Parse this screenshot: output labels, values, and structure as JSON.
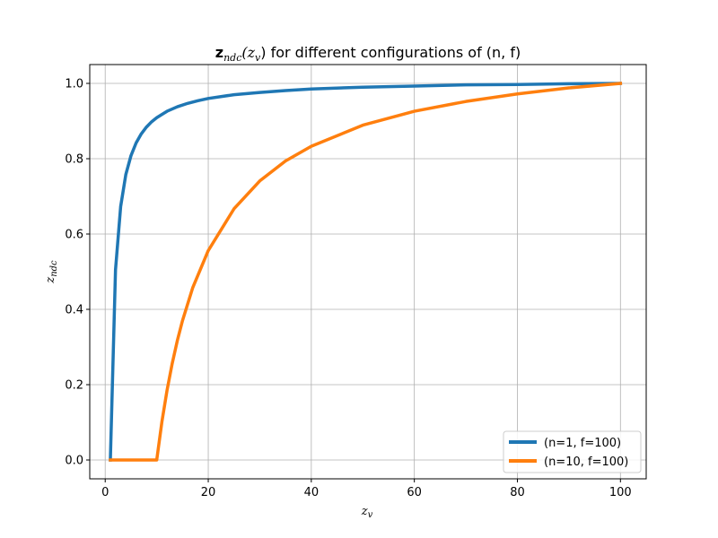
{
  "chart_data": {
    "type": "line",
    "title": {
      "bold": "z",
      "sub1": "ndc",
      "mid": "(z",
      "sub2": "v",
      "rest": ") for different configurations of (n, f)"
    },
    "xlabel": {
      "base": "z",
      "sub": "v"
    },
    "ylabel": {
      "base": "z",
      "sub": "ndc"
    },
    "xlim": [
      -3,
      105
    ],
    "ylim": [
      -0.05,
      1.05
    ],
    "xticks": [
      0,
      20,
      40,
      60,
      80,
      100
    ],
    "yticks": [
      0.0,
      0.2,
      0.4,
      0.6,
      0.8,
      1.0
    ],
    "xtick_labels": [
      "0",
      "20",
      "40",
      "60",
      "80",
      "100"
    ],
    "ytick_labels": [
      "0.0",
      "0.2",
      "0.4",
      "0.6",
      "0.8",
      "1.0"
    ],
    "grid": true,
    "legend_position": "bottom-right",
    "series": [
      {
        "name": "(n=1, f=100)",
        "color": "#1f77b4",
        "x": [
          1,
          2,
          3,
          4,
          5,
          6,
          7,
          8,
          9,
          10,
          12,
          14,
          16,
          18,
          20,
          25,
          30,
          35,
          40,
          50,
          60,
          70,
          80,
          90,
          100
        ],
        "y": [
          0.0,
          0.505,
          0.673,
          0.758,
          0.808,
          0.842,
          0.866,
          0.884,
          0.898,
          0.909,
          0.926,
          0.938,
          0.947,
          0.954,
          0.96,
          0.97,
          0.976,
          0.981,
          0.985,
          0.99,
          0.993,
          0.996,
          0.997,
          0.999,
          1.0
        ]
      },
      {
        "name": "(n=10, f=100)",
        "color": "#ff7f0e",
        "x": [
          1,
          10,
          11,
          12,
          13,
          14,
          15,
          17,
          20,
          25,
          30,
          35,
          40,
          50,
          60,
          70,
          80,
          90,
          100
        ],
        "y": [
          0.0,
          0.0,
          0.101,
          0.185,
          0.256,
          0.317,
          0.37,
          0.458,
          0.556,
          0.667,
          0.741,
          0.794,
          0.833,
          0.889,
          0.926,
          0.952,
          0.972,
          0.988,
          1.0
        ]
      }
    ]
  }
}
